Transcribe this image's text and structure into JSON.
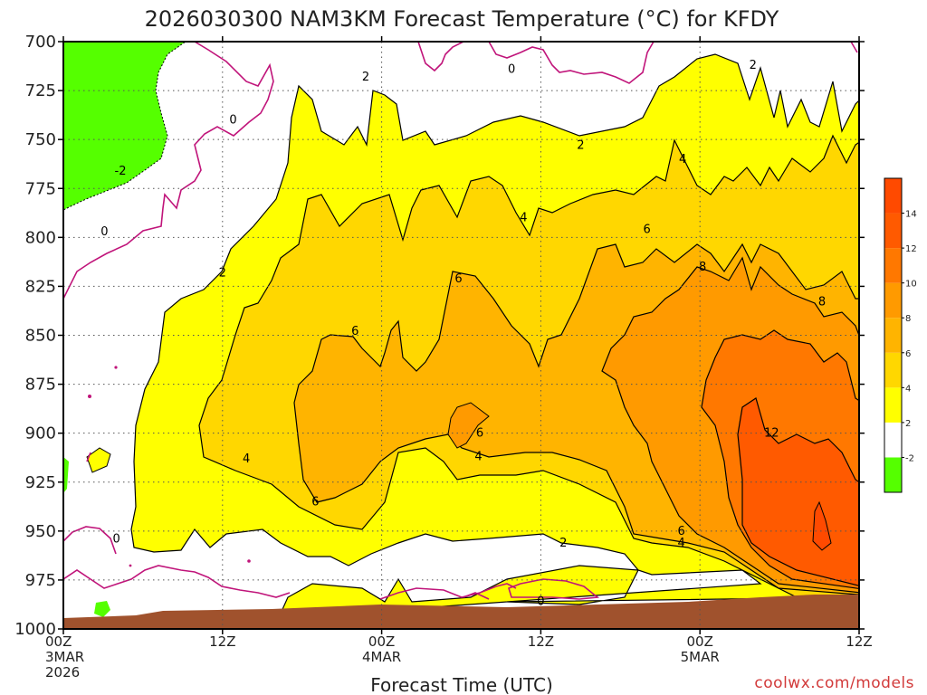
{
  "chart_data": {
    "type": "heatmap",
    "title": "2026030300 NAM3KM Forecast Temperature (°C) for KFDY",
    "xlabel": "Forecast Time (UTC)",
    "ylabel": "",
    "credit": "coolwx.com/models",
    "y_axis": {
      "ticks": [
        700,
        725,
        750,
        775,
        800,
        825,
        850,
        875,
        900,
        925,
        950,
        975,
        1000
      ],
      "range": [
        700,
        1000
      ],
      "inverted": true
    },
    "x_axis": {
      "hours": [
        0,
        12,
        24,
        36,
        48,
        60
      ],
      "tick_labels": [
        [
          "00Z",
          "3MAR",
          "2026"
        ],
        [
          "12Z"
        ],
        [
          "00Z",
          "4MAR"
        ],
        [
          "12Z"
        ],
        [
          "00Z",
          "5MAR"
        ],
        [
          "12Z"
        ]
      ],
      "range": [
        0,
        60
      ]
    },
    "grid": true,
    "legend": {
      "placement": "right",
      "levels": [
        -2,
        2,
        4,
        6,
        8,
        10,
        12,
        14
      ],
      "colors": [
        "#55ff00",
        "#ffffff",
        "#ffff00",
        "#ffd700",
        "#ffb400",
        "#ff9a00",
        "#ff7800",
        "#ff5a00",
        "#ff4a00"
      ]
    },
    "contour_labels": [
      {
        "text": "0",
        "hour": 33.8,
        "p": 714
      },
      {
        "text": "2",
        "hour": 52.0,
        "p": 712
      },
      {
        "text": "2",
        "hour": 22.8,
        "p": 718
      },
      {
        "text": "0",
        "hour": 12.8,
        "p": 740
      },
      {
        "text": "2",
        "hour": 39.0,
        "p": 753
      },
      {
        "text": "4",
        "hour": 46.7,
        "p": 760
      },
      {
        "text": "-2",
        "hour": 4.3,
        "p": 766
      },
      {
        "text": "4",
        "hour": 34.7,
        "p": 790
      },
      {
        "text": "0",
        "hour": 3.1,
        "p": 797
      },
      {
        "text": "6",
        "hour": 44.0,
        "p": 796
      },
      {
        "text": "2",
        "hour": 12.0,
        "p": 818
      },
      {
        "text": "8",
        "hour": 48.2,
        "p": 815
      },
      {
        "text": "6",
        "hour": 29.8,
        "p": 821
      },
      {
        "text": "8",
        "hour": 57.2,
        "p": 833
      },
      {
        "text": "6",
        "hour": 22.0,
        "p": 848
      },
      {
        "text": "12",
        "hour": 53.4,
        "p": 900
      },
      {
        "text": "6",
        "hour": 31.4,
        "p": 900
      },
      {
        "text": "4",
        "hour": 31.3,
        "p": 912
      },
      {
        "text": "4",
        "hour": 13.8,
        "p": 913
      },
      {
        "text": "6",
        "hour": 19.0,
        "p": 935
      },
      {
        "text": "6",
        "hour": 46.6,
        "p": 950
      },
      {
        "text": "4",
        "hour": 46.6,
        "p": 956
      },
      {
        "text": "2",
        "hour": 37.7,
        "p": 956
      },
      {
        "text": "0",
        "hour": 4.0,
        "p": 954
      },
      {
        "text": "0",
        "hour": 36.0,
        "p": 986
      }
    ]
  }
}
